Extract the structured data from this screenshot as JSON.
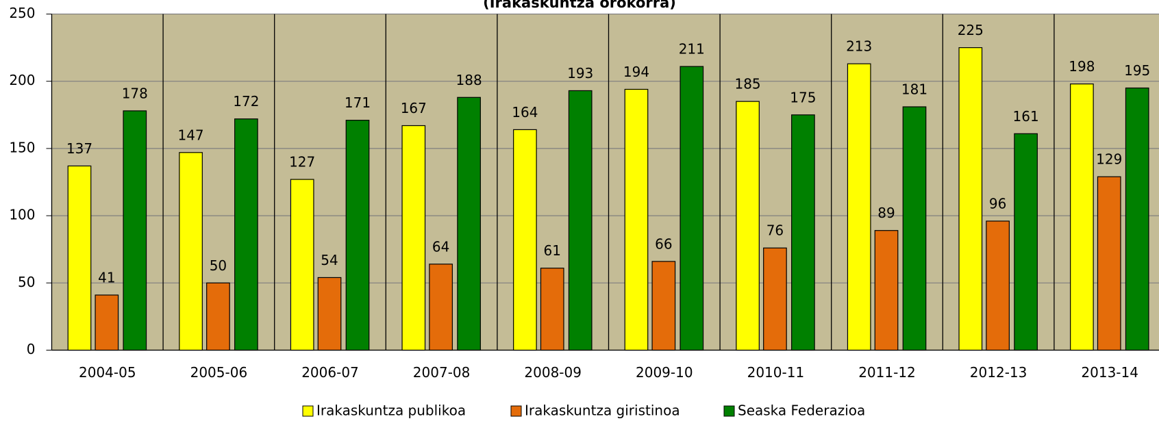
{
  "chart_data": {
    "type": "bar",
    "title": "(Irakaskuntza orokorra)",
    "categories": [
      "2004-05",
      "2005-06",
      "2006-07",
      "2007-08",
      "2008-09",
      "2009-10",
      "2010-11",
      "2011-12",
      "2012-13",
      "2013-14"
    ],
    "series": [
      {
        "name": "Irakaskuntza publikoa",
        "color": "#ffff00",
        "values": [
          137,
          147,
          127,
          167,
          164,
          194,
          185,
          213,
          225,
          198
        ]
      },
      {
        "name": "Irakaskuntza giristinoa",
        "color": "#e46c0a",
        "values": [
          41,
          50,
          54,
          64,
          61,
          66,
          76,
          89,
          96,
          129
        ]
      },
      {
        "name": "Seaska Federazioa",
        "color": "#008000",
        "values": [
          178,
          172,
          171,
          188,
          193,
          211,
          175,
          181,
          161,
          195
        ]
      }
    ],
    "ylim": [
      0,
      250
    ],
    "yticks": [
      0,
      50,
      100,
      150,
      200,
      250
    ],
    "grid": true,
    "legend": "bottom"
  }
}
